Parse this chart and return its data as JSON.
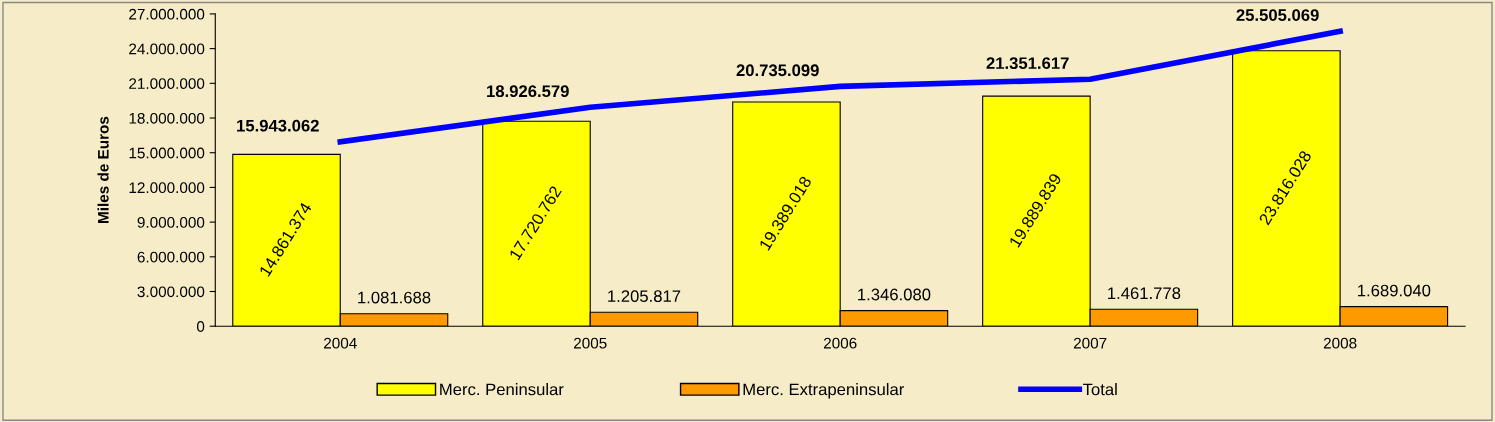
{
  "chart_data": {
    "type": "bar",
    "ylabel": "Miles de Euros",
    "categories": [
      "2004",
      "2005",
      "2006",
      "2007",
      "2008"
    ],
    "series": [
      {
        "name": "Merc. Peninsular",
        "color": "#ffff00",
        "values": [
          14861374,
          17720762,
          19389018,
          19889839,
          23816028
        ],
        "value_labels": [
          "14.861.374",
          "17.720.762",
          "19.389.018",
          "19.889.839",
          "23.816.028"
        ]
      },
      {
        "name": "Merc. Extrapeninsular",
        "color": "#ff9900",
        "values": [
          1081688,
          1205817,
          1346080,
          1461778,
          1689040
        ],
        "value_labels": [
          "1.081.688",
          "1.205.817",
          "1.346.080",
          "1.461.778",
          "1.689.040"
        ]
      },
      {
        "name": "Total",
        "type": "line",
        "color": "#0000ff",
        "values": [
          15943062,
          18926579,
          20735099,
          21351617,
          25505069
        ],
        "value_labels": [
          "15.943.062",
          "18.926.579",
          "20.735.099",
          "21.351.617",
          "25.505.069"
        ]
      }
    ],
    "ylim": [
      0,
      27000000
    ],
    "yticks": [
      0,
      {
        "value": 3000000,
        "label": "3.000.000"
      },
      {
        "value": 6000000,
        "label": "6.000.000"
      },
      {
        "value": 9000000,
        "label": "9.000.000"
      },
      {
        "value": 12000000,
        "label": "12.000.000"
      },
      {
        "value": 15000000,
        "label": "15.000.000"
      },
      {
        "value": 18000000,
        "label": "18.000.000"
      },
      {
        "value": 21000000,
        "label": "21.000.000"
      },
      {
        "value": 24000000,
        "label": "24.000.000"
      },
      {
        "value": 27000000,
        "label": "27.000.000"
      }
    ],
    "grid": false,
    "legend": "bottom",
    "marker": "none",
    "line_style": "solid"
  }
}
